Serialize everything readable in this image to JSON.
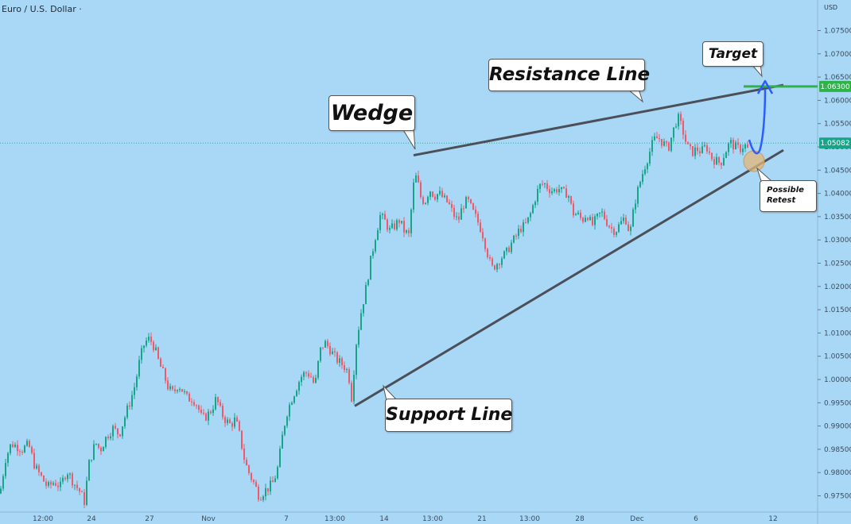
{
  "header": {
    "symbol_title": "Euro / U.S. Dollar ·",
    "currency": "USD"
  },
  "callouts": {
    "wedge": "Wedge",
    "resistance": "Resistance Line",
    "support": "Support Line",
    "target": "Target",
    "retest_line1": "Possible",
    "retest_line2": "Retest"
  },
  "colors": {
    "background": "#a9d8f7",
    "up_candle": "#17a58a",
    "down_candle": "#ee5a6a",
    "trend_line": "#4a4f58",
    "target_line": "#2fb24a",
    "projection_arrow": "#2a5cff",
    "current_price_tag": "#17a58a",
    "retest_circle": "#e3b779"
  },
  "chart_data": {
    "type": "candlestick",
    "title": "Euro / U.S. Dollar",
    "y_axis_unit": "USD",
    "ylim": [
      0.9715,
      1.0785
    ],
    "y_ticks": [
      "1.07500",
      "1.07000",
      "1.06500",
      "1.06000",
      "1.05500",
      "1.05000",
      "1.04500",
      "1.04000",
      "1.03500",
      "1.03000",
      "1.02500",
      "1.02000",
      "1.01500",
      "1.01000",
      "1.00500",
      "1.00000",
      "0.99500",
      "0.99000",
      "0.98500",
      "0.98000",
      "0.97500"
    ],
    "x_ticks": [
      "12:00",
      "24",
      "27",
      "Nov",
      "7",
      "13:00",
      "14",
      "13:00",
      "21",
      "13:00",
      "28",
      "Dec",
      "6",
      "12"
    ],
    "current_price": "1.05082",
    "target_price": "1.06300",
    "grid": false,
    "close_path": [
      [
        0,
        0.9755
      ],
      [
        7,
        0.983
      ],
      [
        14,
        0.9862
      ],
      [
        20,
        0.9858
      ],
      [
        28,
        0.985
      ],
      [
        36,
        0.986
      ],
      [
        44,
        0.9812
      ],
      [
        52,
        0.979
      ],
      [
        60,
        0.9768
      ],
      [
        68,
        0.978
      ],
      [
        76,
        0.977
      ],
      [
        84,
        0.9805
      ],
      [
        92,
        0.978
      ],
      [
        100,
        0.976
      ],
      [
        106,
        0.9738
      ],
      [
        112,
        0.982
      ],
      [
        120,
        0.9865
      ],
      [
        126,
        0.9848
      ],
      [
        134,
        0.9878
      ],
      [
        142,
        0.9895
      ],
      [
        150,
        0.9882
      ],
      [
        158,
        0.9925
      ],
      [
        164,
        0.9955
      ],
      [
        170,
        0.999
      ],
      [
        176,
        1.0045
      ],
      [
        182,
        1.008
      ],
      [
        188,
        1.0088
      ],
      [
        194,
        1.007
      ],
      [
        200,
        1.0035
      ],
      [
        206,
        1.001
      ],
      [
        212,
        0.998
      ],
      [
        218,
        0.997
      ],
      [
        224,
        0.999
      ],
      [
        230,
        0.9975
      ],
      [
        236,
        0.9958
      ],
      [
        242,
        0.996
      ],
      [
        248,
        0.9945
      ],
      [
        254,
        0.9915
      ],
      [
        260,
        0.9922
      ],
      [
        266,
        0.9935
      ],
      [
        272,
        0.996
      ],
      [
        278,
        0.9928
      ],
      [
        284,
        0.9912
      ],
      [
        290,
        0.9902
      ],
      [
        296,
        0.9915
      ],
      [
        302,
        0.9875
      ],
      [
        308,
        0.9822
      ],
      [
        314,
        0.9795
      ],
      [
        320,
        0.9775
      ],
      [
        326,
        0.9748
      ],
      [
        332,
        0.976
      ],
      [
        338,
        0.9768
      ],
      [
        344,
        0.978
      ],
      [
        350,
        0.9815
      ],
      [
        354,
        0.9868
      ],
      [
        360,
        0.9925
      ],
      [
        366,
        0.9955
      ],
      [
        372,
        0.998
      ],
      [
        378,
        1.0005
      ],
      [
        384,
        1.0015
      ],
      [
        390,
        1.001
      ],
      [
        396,
        0.9985
      ],
      [
        402,
        1.006
      ],
      [
        408,
        1.008
      ],
      [
        414,
        1.0068
      ],
      [
        420,
        1.005
      ],
      [
        426,
        1.0038
      ],
      [
        432,
        1.003
      ],
      [
        438,
        1.0015
      ],
      [
        442,
        0.9962
      ],
      [
        448,
        1.008
      ],
      [
        454,
        1.0145
      ],
      [
        460,
        1.0195
      ],
      [
        466,
        1.0255
      ],
      [
        472,
        1.0308
      ],
      [
        478,
        1.0352
      ],
      [
        484,
        1.034
      ],
      [
        490,
        1.032
      ],
      [
        496,
        1.033
      ],
      [
        502,
        1.0342
      ],
      [
        508,
        1.032
      ],
      [
        514,
        1.031
      ],
      [
        520,
        1.0418
      ],
      [
        524,
        1.044
      ],
      [
        528,
        1.0395
      ],
      [
        534,
        1.038
      ],
      [
        540,
        1.041
      ],
      [
        546,
        1.0395
      ],
      [
        552,
        1.04
      ],
      [
        558,
        1.0388
      ],
      [
        564,
        1.0378
      ],
      [
        570,
        1.0355
      ],
      [
        576,
        1.034
      ],
      [
        582,
        1.0375
      ],
      [
        588,
        1.0385
      ],
      [
        594,
        1.0362
      ],
      [
        600,
        1.0342
      ],
      [
        606,
        1.0318
      ],
      [
        612,
        1.0278
      ],
      [
        618,
        1.0238
      ],
      [
        624,
        1.0248
      ],
      [
        630,
        1.0262
      ],
      [
        636,
        1.027
      ],
      [
        642,
        1.029
      ],
      [
        648,
        1.0305
      ],
      [
        654,
        1.0325
      ],
      [
        660,
        1.033
      ],
      [
        666,
        1.035
      ],
      [
        672,
        1.0385
      ],
      [
        678,
        1.0415
      ],
      [
        684,
        1.0422
      ],
      [
        690,
        1.041
      ],
      [
        696,
        1.0405
      ],
      [
        702,
        1.0412
      ],
      [
        708,
        1.04
      ],
      [
        714,
        1.0402
      ],
      [
        720,
        1.0358
      ],
      [
        726,
        1.0355
      ],
      [
        732,
        1.0342
      ],
      [
        738,
        1.0358
      ],
      [
        744,
        1.033
      ],
      [
        750,
        1.0345
      ],
      [
        756,
        1.036
      ],
      [
        762,
        1.0342
      ],
      [
        768,
        1.0325
      ],
      [
        774,
        1.032
      ],
      [
        780,
        1.0335
      ],
      [
        786,
        1.035
      ],
      [
        792,
        1.0312
      ],
      [
        798,
        1.038
      ],
      [
        804,
        1.042
      ],
      [
        810,
        1.0455
      ],
      [
        816,
        1.0485
      ],
      [
        822,
        1.0515
      ],
      [
        828,
        1.052
      ],
      [
        834,
        1.0508
      ],
      [
        840,
        1.0495
      ],
      [
        846,
        1.0532
      ],
      [
        852,
        1.0565
      ],
      [
        858,
        1.0538
      ],
      [
        864,
        1.05
      ],
      [
        870,
        1.0488
      ],
      [
        876,
        1.0495
      ],
      [
        882,
        1.049
      ],
      [
        888,
        1.0502
      ],
      [
        894,
        1.0478
      ],
      [
        900,
        1.047
      ],
      [
        906,
        1.0465
      ],
      [
        912,
        1.049
      ],
      [
        918,
        1.051
      ],
      [
        924,
        1.05
      ],
      [
        930,
        1.0495
      ],
      [
        936,
        1.0505
      ],
      [
        942,
        1.049
      ]
    ],
    "resistance_line": [
      [
        520,
        1.0482
      ],
      [
        985,
        1.0633
      ]
    ],
    "support_line": [
      [
        446,
        0.9943
      ],
      [
        985,
        1.0493
      ]
    ],
    "target_level": {
      "y": 1.063,
      "x_from": 935,
      "x_to": 1028
    }
  }
}
